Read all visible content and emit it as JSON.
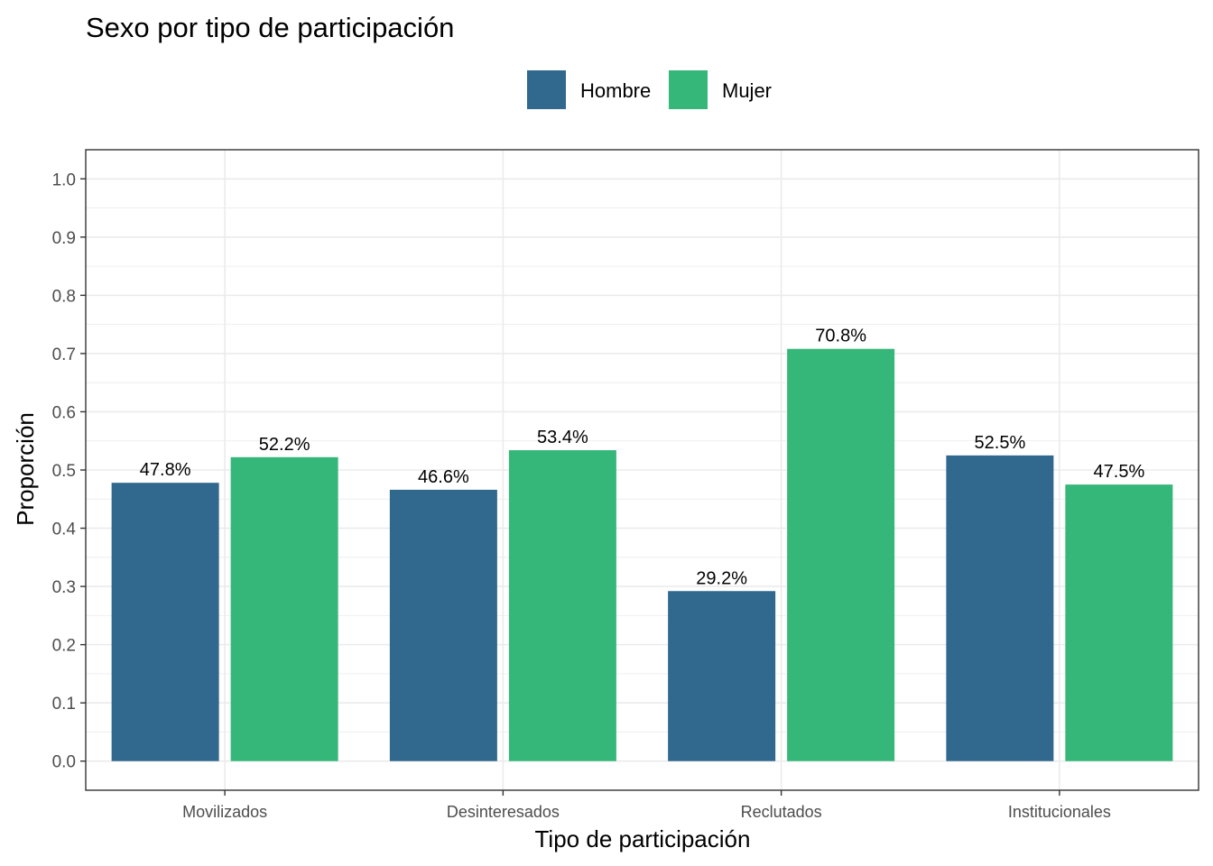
{
  "chart_data": {
    "type": "bar",
    "title": "Sexo por tipo de participación",
    "xlabel": "Tipo de participación",
    "ylabel": "Proporción",
    "ylim": [
      -0.05,
      1.05
    ],
    "yticks": [
      "0.0",
      "0.1",
      "0.2",
      "0.3",
      "0.4",
      "0.5",
      "0.6",
      "0.7",
      "0.8",
      "0.9",
      "1.0"
    ],
    "grid": true,
    "legend_position": "top",
    "categories": [
      "Movilizados",
      "Desinteresados",
      "Reclutados",
      "Institucionales"
    ],
    "series": [
      {
        "name": "Hombre",
        "color": "#31688e",
        "values": [
          0.478,
          0.466,
          0.292,
          0.525
        ],
        "labels": [
          "47.8%",
          "46.6%",
          "29.2%",
          "52.5%"
        ]
      },
      {
        "name": "Mujer",
        "color": "#35b779",
        "values": [
          0.522,
          0.534,
          0.708,
          0.475
        ],
        "labels": [
          "52.2%",
          "53.4%",
          "70.8%",
          "47.5%"
        ]
      }
    ]
  }
}
